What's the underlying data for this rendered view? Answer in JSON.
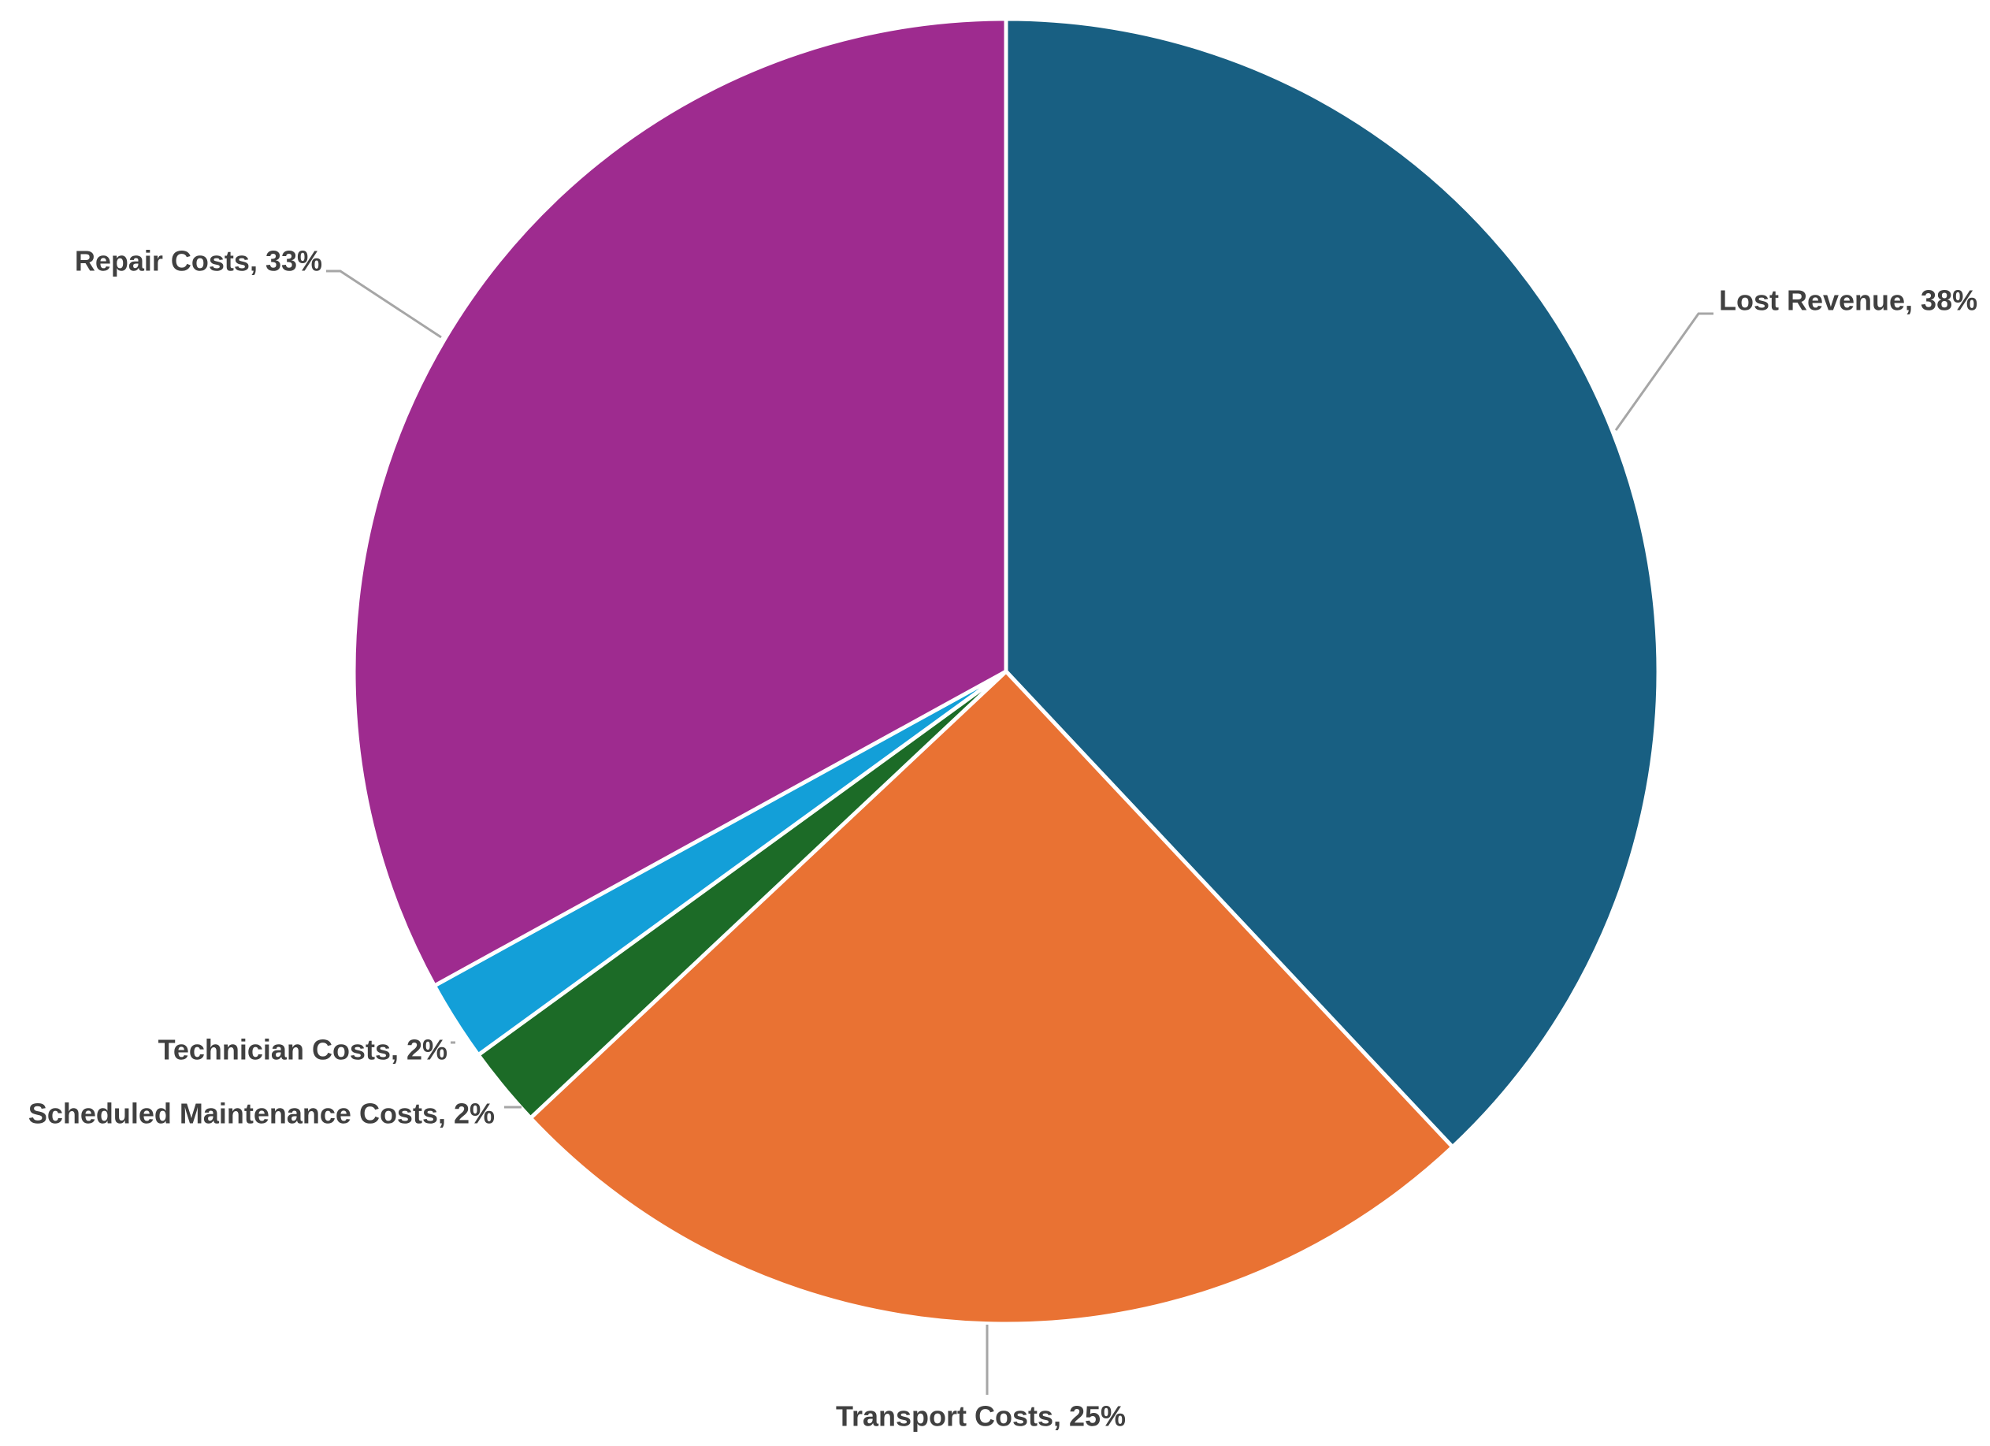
{
  "chart_data": {
    "type": "pie",
    "slices": [
      {
        "label": "Lost Revenue",
        "value": 38,
        "display": "Lost Revenue, 38%",
        "color": "#185f82"
      },
      {
        "label": "Transport Costs",
        "value": 25,
        "display": "Transport Costs, 25%",
        "color": "#e97233"
      },
      {
        "label": "Scheduled Maintenance Costs",
        "value": 2,
        "display": "Scheduled Maintenance Costs, 2%",
        "color": "#1c6b27"
      },
      {
        "label": "Technician Costs",
        "value": 2,
        "display": "Technician Costs, 2%",
        "color": "#139fd8"
      },
      {
        "label": "Repair Costs",
        "value": 33,
        "display": "Repair Costs, 33%",
        "color": "#9e2b8f"
      }
    ],
    "start_angle": "top",
    "direction": "clockwise",
    "legend": "none",
    "data_labels": "outside with leader lines"
  }
}
